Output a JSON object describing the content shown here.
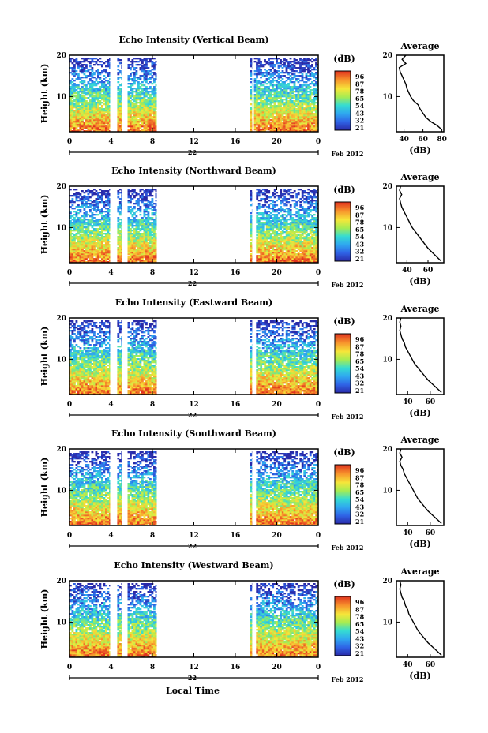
{
  "figure": {
    "xlabel": "Local Time",
    "cbar_title": "(dB)",
    "month_label": "Feb 2012",
    "avg_title": "Average",
    "avg_xlabel": "(dB)"
  },
  "chart_data": [
    {
      "type": "heatmap",
      "title": "Echo Intensity (Vertical Beam)",
      "ylabel": "Height (km)",
      "xlim": [
        0,
        24
      ],
      "ylim": [
        1.5,
        20
      ],
      "xticks": [
        "0",
        "4",
        "8",
        "12",
        "16",
        "20",
        "0"
      ],
      "yticks": [
        "10",
        "20"
      ],
      "date_label": "22",
      "colorbar_ticks": [
        "96",
        "87",
        "78",
        "65",
        "54",
        "43",
        "32",
        "21"
      ],
      "data_intervals_hours": [
        [
          0,
          3.9
        ],
        [
          4.6,
          5.0
        ],
        [
          5.6,
          8.4
        ],
        [
          17.4,
          17.6
        ],
        [
          17.8,
          24
        ]
      ],
      "max_height_km": 19.5,
      "average_profile": {
        "xticks": [
          "40",
          "60",
          "80"
        ],
        "xlim": [
          32,
          82
        ],
        "height_km": [
          2,
          3,
          4,
          5,
          6,
          7,
          8,
          9,
          10,
          11,
          12,
          13,
          14,
          15,
          16,
          17,
          18,
          19,
          20
        ],
        "db": [
          80,
          75,
          68,
          63,
          60,
          57,
          55,
          50,
          47,
          45,
          43,
          42,
          40,
          38,
          36,
          35,
          42,
          38,
          42
        ]
      }
    },
    {
      "type": "heatmap",
      "title": "Echo Intensity (Northward Beam)",
      "ylabel": "Height (km)",
      "xlim": [
        0,
        24
      ],
      "ylim": [
        1.5,
        20
      ],
      "xticks": [
        "0",
        "4",
        "8",
        "12",
        "16",
        "20",
        "0"
      ],
      "yticks": [
        "10",
        "20"
      ],
      "date_label": "22",
      "colorbar_ticks": [
        "96",
        "87",
        "78",
        "65",
        "54",
        "43",
        "32",
        "21"
      ],
      "data_intervals_hours": [
        [
          0,
          3.9
        ],
        [
          4.6,
          5.0
        ],
        [
          5.6,
          8.4
        ],
        [
          17.4,
          17.6
        ],
        [
          18.0,
          24
        ]
      ],
      "max_height_km": 19.5,
      "average_profile": {
        "xticks": [
          "40",
          "60"
        ],
        "xlim": [
          30,
          75
        ],
        "height_km": [
          2,
          3,
          4,
          5,
          6,
          7,
          8,
          9,
          10,
          11,
          12,
          13,
          14,
          15,
          16,
          17,
          18,
          19,
          20
        ],
        "db": [
          72,
          68,
          64,
          60,
          57,
          54,
          51,
          48,
          45,
          43,
          41,
          39,
          37,
          35,
          34,
          33,
          35,
          33,
          34
        ]
      }
    },
    {
      "type": "heatmap",
      "title": "Echo Intensity (Eastward Beam)",
      "ylabel": "Height (km)",
      "xlim": [
        0,
        24
      ],
      "ylim": [
        1.5,
        20
      ],
      "xticks": [
        "0",
        "4",
        "8",
        "12",
        "16",
        "20",
        "0"
      ],
      "yticks": [
        "10",
        "20"
      ],
      "date_label": "22",
      "colorbar_ticks": [
        "96",
        "87",
        "78",
        "65",
        "54",
        "43",
        "32",
        "21"
      ],
      "data_intervals_hours": [
        [
          0,
          3.9
        ],
        [
          4.6,
          5.0
        ],
        [
          5.6,
          8.4
        ],
        [
          17.4,
          17.6
        ],
        [
          18.0,
          24
        ]
      ],
      "max_height_km": 19.5,
      "average_profile": {
        "xticks": [
          "40",
          "60"
        ],
        "xlim": [
          30,
          72
        ],
        "height_km": [
          2,
          3,
          4,
          5,
          6,
          7,
          8,
          9,
          10,
          11,
          12,
          13,
          14,
          15,
          16,
          17,
          18,
          19,
          20
        ],
        "db": [
          70,
          66,
          62,
          58,
          55,
          52,
          49,
          46,
          44,
          42,
          40,
          38,
          37,
          35,
          34,
          33,
          34,
          33,
          34
        ]
      }
    },
    {
      "type": "heatmap",
      "title": "Echo Intensity (Southward Beam)",
      "ylabel": "Height (km)",
      "xlim": [
        0,
        24
      ],
      "ylim": [
        1.5,
        20
      ],
      "xticks": [
        "0",
        "4",
        "8",
        "12",
        "16",
        "20",
        "0"
      ],
      "yticks": [
        "10",
        "20"
      ],
      "date_label": "22",
      "colorbar_ticks": [
        "96",
        "87",
        "78",
        "65",
        "54",
        "43",
        "32",
        "21"
      ],
      "data_intervals_hours": [
        [
          0,
          3.9
        ],
        [
          4.6,
          5.0
        ],
        [
          5.6,
          8.4
        ],
        [
          17.4,
          17.6
        ],
        [
          18.0,
          24
        ]
      ],
      "max_height_km": 19.5,
      "average_profile": {
        "xticks": [
          "40",
          "60"
        ],
        "xlim": [
          30,
          72
        ],
        "height_km": [
          2,
          3,
          4,
          5,
          6,
          7,
          8,
          9,
          10,
          11,
          12,
          13,
          14,
          15,
          16,
          17,
          18,
          19,
          20
        ],
        "db": [
          70,
          66,
          62,
          58,
          55,
          52,
          49,
          47,
          45,
          43,
          41,
          39,
          37,
          36,
          34,
          33,
          35,
          33,
          34
        ]
      }
    },
    {
      "type": "heatmap",
      "title": "Echo Intensity (Westward Beam)",
      "ylabel": "Height (km)",
      "xlim": [
        0,
        24
      ],
      "ylim": [
        1.5,
        20
      ],
      "xticks": [
        "0",
        "4",
        "8",
        "12",
        "16",
        "20",
        "0"
      ],
      "yticks": [
        "10",
        "20"
      ],
      "date_label": "22",
      "colorbar_ticks": [
        "96",
        "87",
        "78",
        "65",
        "54",
        "43",
        "32",
        "21"
      ],
      "data_intervals_hours": [
        [
          0,
          3.9
        ],
        [
          4.6,
          5.0
        ],
        [
          5.6,
          8.4
        ],
        [
          17.4,
          17.6
        ],
        [
          18.0,
          24
        ]
      ],
      "max_height_km": 19.5,
      "average_profile": {
        "xticks": [
          "40",
          "60"
        ],
        "xlim": [
          30,
          72
        ],
        "height_km": [
          2,
          3,
          4,
          5,
          6,
          7,
          8,
          9,
          10,
          11,
          12,
          13,
          14,
          15,
          16,
          17,
          18,
          19,
          20
        ],
        "db": [
          70,
          66,
          62,
          58,
          55,
          52,
          49,
          47,
          45,
          43,
          41,
          40,
          38,
          37,
          35,
          34,
          33,
          34,
          33
        ]
      }
    }
  ]
}
